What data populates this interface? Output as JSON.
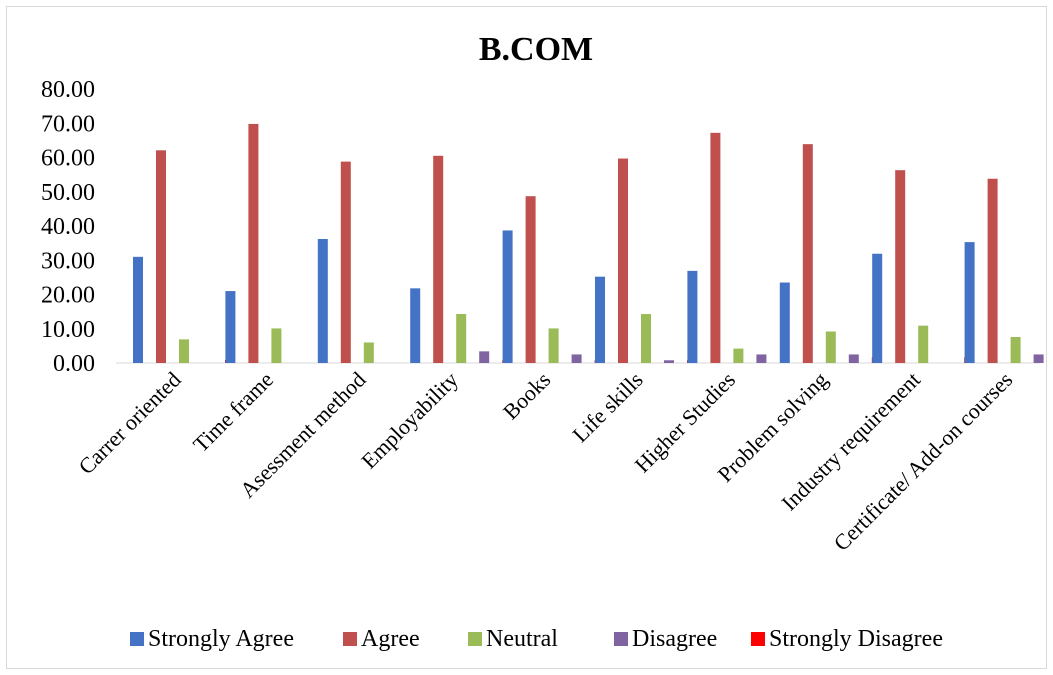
{
  "chart_data": {
    "type": "bar",
    "title": "B.COM",
    "categories": [
      "Carrer oriented",
      "Time frame",
      "Asessment method",
      "Employability",
      "Books",
      "Life skills",
      "Higher Studies",
      "Problem solving",
      "Industry requirement",
      "Certificate/ Add-on courses"
    ],
    "series": [
      {
        "name": "Strongly Agree",
        "color": "#4472c4",
        "values": [
          31.0,
          21.0,
          36.2,
          21.8,
          38.7,
          25.2,
          26.9,
          23.5,
          31.9,
          35.3
        ]
      },
      {
        "name": "Agree",
        "color": "#c0504d",
        "values": [
          62.1,
          69.8,
          58.8,
          60.5,
          48.7,
          59.7,
          67.2,
          63.9,
          56.3,
          53.8
        ]
      },
      {
        "name": "Neutral",
        "color": "#9bbb59",
        "values": [
          6.9,
          10.1,
          6.0,
          14.3,
          10.1,
          14.3,
          4.2,
          9.2,
          10.9,
          7.6
        ]
      },
      {
        "name": "Disagree",
        "color": "#8064a2",
        "values": [
          0,
          0,
          0,
          3.4,
          2.5,
          0.8,
          2.5,
          2.5,
          0,
          2.5
        ]
      },
      {
        "name": "Strongly Disagree",
        "color": "#ff0000",
        "values": [
          0.9,
          0,
          0,
          0.8,
          0.8,
          0.8,
          0,
          1.7,
          1.7,
          1.7
        ]
      }
    ],
    "yticks": [
      "0.00",
      "10.00",
      "20.00",
      "30.00",
      "40.00",
      "50.00",
      "60.00",
      "70.00",
      "80.00"
    ],
    "ylim": [
      0,
      80
    ],
    "legend_position": "bottom",
    "grid": false
  }
}
